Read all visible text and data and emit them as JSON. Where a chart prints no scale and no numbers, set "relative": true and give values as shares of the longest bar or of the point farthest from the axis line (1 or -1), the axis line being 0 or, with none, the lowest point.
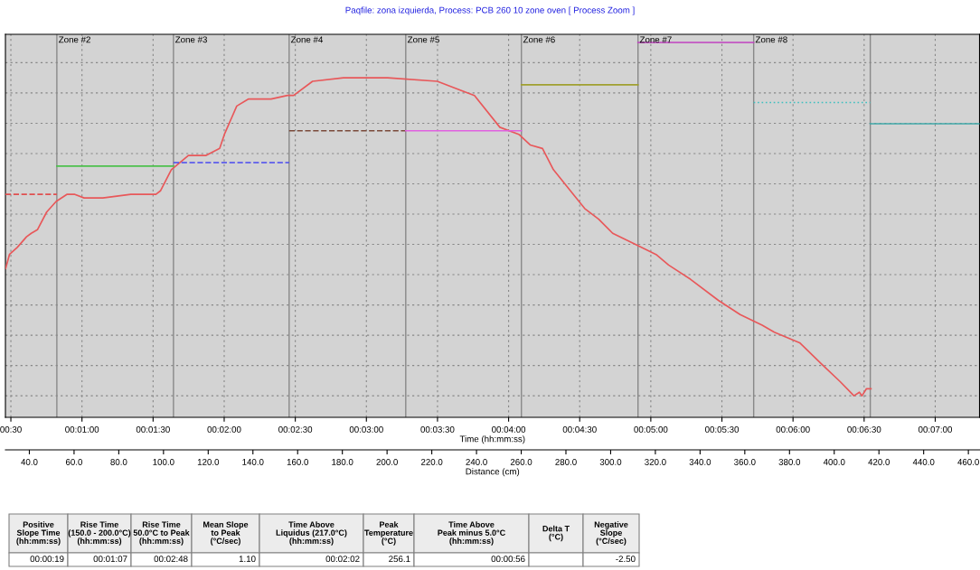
{
  "chart_data": {
    "type": "line",
    "title": "Paqfile: zona izquierda, Process: PCB 260 10 zone oven [ Process Zoom ]",
    "xlabel": "Time (hh:mm:ss)",
    "x2label": "Distance (cm)",
    "relative": true,
    "grid": true,
    "marker": "none",
    "xlim": [
      27.7,
      438.7
    ],
    "xticks": [
      {
        "value": 30,
        "label": "00:30"
      },
      {
        "value": 60,
        "label": "00:01:00"
      },
      {
        "value": 90,
        "label": "00:01:30"
      },
      {
        "value": 120,
        "label": "00:02:00"
      },
      {
        "value": 150,
        "label": "00:02:30"
      },
      {
        "value": 180,
        "label": "00:03:00"
      },
      {
        "value": 210,
        "label": "00:03:30"
      },
      {
        "value": 240,
        "label": "00:04:00"
      },
      {
        "value": 270,
        "label": "00:04:30"
      },
      {
        "value": 300,
        "label": "00:05:00"
      },
      {
        "value": 330,
        "label": "00:05:30"
      },
      {
        "value": 360,
        "label": "00:06:00"
      },
      {
        "value": 390,
        "label": "00:06:30"
      },
      {
        "value": 420,
        "label": "00:07:00"
      }
    ],
    "x2lim": [
      29.3,
      465.0
    ],
    "x2ticks": [
      {
        "value": 40,
        "label": "40.0"
      },
      {
        "value": 60,
        "label": "60.0"
      },
      {
        "value": 80,
        "label": "80.0"
      },
      {
        "value": 100,
        "label": "100.0"
      },
      {
        "value": 120,
        "label": "120.0"
      },
      {
        "value": 140,
        "label": "140.0"
      },
      {
        "value": 160,
        "label": "160.0"
      },
      {
        "value": 180,
        "label": "180.0"
      },
      {
        "value": 200,
        "label": "200.0"
      },
      {
        "value": 220,
        "label": "220.0"
      },
      {
        "value": 240,
        "label": "240.0"
      },
      {
        "value": 260,
        "label": "260.0"
      },
      {
        "value": 280,
        "label": "280.0"
      },
      {
        "value": 300,
        "label": "300.0"
      },
      {
        "value": 320,
        "label": "320.0"
      },
      {
        "value": 340,
        "label": "340.0"
      },
      {
        "value": 360,
        "label": "360.0"
      },
      {
        "value": 380,
        "label": "380.0"
      },
      {
        "value": 400,
        "label": "400.0"
      },
      {
        "value": 420,
        "label": "420.0"
      },
      {
        "value": 440,
        "label": "440.0"
      },
      {
        "value": 460,
        "label": "460.0"
      }
    ],
    "series": [
      {
        "color": "#e8585a",
        "line_style": "solid",
        "x": [
          27.8,
          29.4,
          32.7,
          36.6,
          38.6,
          41.2,
          45.1,
          49.1,
          53.6,
          57.0,
          60.9,
          68.8,
          80.6,
          91.2,
          93.1,
          97.7,
          104.9,
          112.2,
          118.1,
          120.1,
          125.3,
          130.3,
          139.8,
          146.7,
          149.3,
          157.3,
          170.3,
          189.0,
          209.9,
          225.6,
          236.3,
          244.3,
          249.1,
          254.3,
          258.9,
          266.1,
          272.1,
          278.0,
          283.9,
          293.1,
          302.2,
          307.5,
          316.7,
          328.5,
          337.7,
          347.0,
          352.1,
          362.8,
          372.0,
          379.9,
          385.7,
          388.0,
          389.1,
          391.0,
          392.9
        ],
        "values": [
          0.36,
          0.4,
          0.42,
          0.45,
          0.46,
          0.47,
          0.52,
          0.55,
          0.57,
          0.57,
          0.56,
          0.56,
          0.57,
          0.57,
          0.58,
          0.64,
          0.68,
          0.68,
          0.7,
          0.74,
          0.82,
          0.84,
          0.84,
          0.85,
          0.85,
          0.89,
          0.9,
          0.9,
          0.89,
          0.85,
          0.76,
          0.74,
          0.71,
          0.7,
          0.64,
          0.58,
          0.53,
          0.5,
          0.46,
          0.43,
          0.4,
          0.37,
          0.33,
          0.27,
          0.23,
          0.2,
          0.18,
          0.15,
          0.09,
          0.04,
          0.0,
          0.01,
          0.0,
          0.02,
          0.02
        ]
      },
      {
        "color": "#e05050",
        "line_style": "dashed",
        "x": [
          27.7,
          49.4
        ],
        "values": [
          0.57,
          0.57
        ]
      },
      {
        "color": "#4cc04c",
        "line_style": "solid",
        "x": [
          49.4,
          98.6
        ],
        "values": [
          0.65,
          0.65
        ]
      },
      {
        "color": "#4a4af0",
        "line_style": "dashed",
        "x": [
          98.6,
          147.4
        ],
        "values": [
          0.66,
          0.66
        ]
      },
      {
        "color": "#7a4a3a",
        "line_style": "dashed",
        "x": [
          147.4,
          196.6
        ],
        "values": [
          0.75,
          0.75
        ]
      },
      {
        "color": "#e060e0",
        "line_style": "solid",
        "x": [
          196.6,
          245.4
        ],
        "values": [
          0.75,
          0.75
        ]
      },
      {
        "color": "#a0a030",
        "line_style": "solid",
        "x": [
          245.4,
          294.6
        ],
        "values": [
          0.88,
          0.88
        ]
      },
      {
        "color": "#c040c0",
        "line_style": "solid",
        "x": [
          294.6,
          343.4
        ],
        "values": [
          1.0,
          1.0
        ]
      },
      {
        "color": "#40c0c0",
        "line_style": "dotted",
        "x": [
          343.4,
          392.6
        ],
        "values": [
          0.83,
          0.83
        ]
      },
      {
        "color": "#40a8a8",
        "line_style": "solid",
        "x": [
          392.6,
          438.7
        ],
        "values": [
          0.77,
          0.77
        ]
      }
    ],
    "ref_lines": [
      {
        "axis": "x",
        "value": 49.4,
        "label": "Zone #2",
        "color": "#888888"
      },
      {
        "axis": "x",
        "value": 98.6,
        "label": "Zone #3",
        "color": "#888888"
      },
      {
        "axis": "x",
        "value": 147.4,
        "label": "Zone #4",
        "color": "#888888"
      },
      {
        "axis": "x",
        "value": 196.6,
        "label": "Zone #5",
        "color": "#888888"
      },
      {
        "axis": "x",
        "value": 245.4,
        "label": "Zone #6",
        "color": "#888888"
      },
      {
        "axis": "x",
        "value": 294.6,
        "label": "Zone #7",
        "color": "#888888"
      },
      {
        "axis": "x",
        "value": 343.4,
        "label": "Zone #8",
        "color": "#888888"
      },
      {
        "axis": "x",
        "value": 392.6,
        "label": null,
        "color": "#888888"
      }
    ],
    "annotations": [
      "Positive\nSlope Time\n(hh:mm:ss)",
      "00:00:19",
      "Rise Time\n(150.0 - 200.0°C)\n(hh:mm:ss)",
      "00:01:07",
      "Rise Time\n50.0°C to Peak\n(hh:mm:ss)",
      "00:02:48",
      "Mean Slope\nto Peak\n(°C/sec)",
      "1.10",
      "Time Above\nLiquidus (217.0°C)\n(hh:mm:ss)",
      "00:02:02",
      "Peak\nTemperature\n(°C)",
      "256.1",
      "Time Above\nPeak minus 5.0°C\n(hh:mm:ss)",
      "00:00:56",
      "Delta T\n(°C)",
      null,
      "Negative\nSlope\n(°C/sec)",
      "-2.50"
    ]
  }
}
